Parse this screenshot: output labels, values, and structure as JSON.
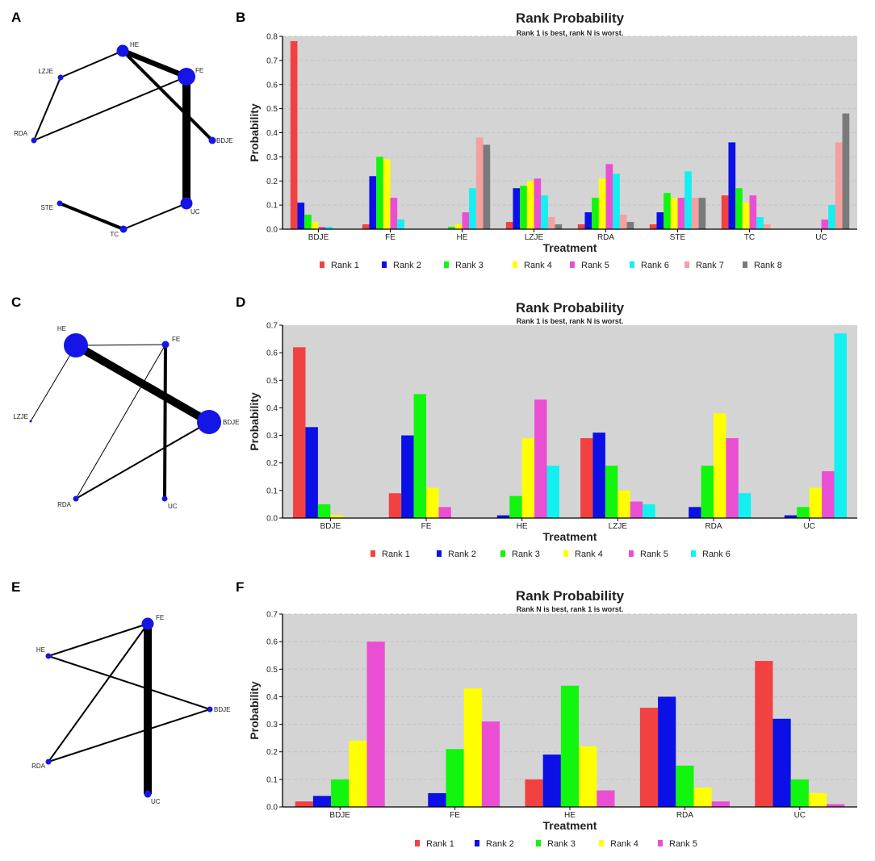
{
  "panels": [
    "A",
    "B",
    "C",
    "D",
    "E",
    "F"
  ],
  "colors": {
    "Rank 1": "#f24141",
    "Rank 2": "#0a10e6",
    "Rank 3": "#12f50e",
    "Rank 4": "#ffff00",
    "Rank 5": "#ea4fd3",
    "Rank 6": "#12f0f0",
    "Rank 7": "#f4a0a0",
    "Rank 8": "#7a7a7a",
    "node": "#1515e6",
    "plot_bg": "#d4d4d4"
  },
  "networks": [
    {
      "panel": "A",
      "nodes": [
        {
          "label": "HE",
          "size": "medium"
        },
        {
          "label": "FE",
          "size": "large"
        },
        {
          "label": "LZJE",
          "size": "tiny"
        },
        {
          "label": "RDA",
          "size": "tiny"
        },
        {
          "label": "BDJE",
          "size": "small"
        },
        {
          "label": "STE",
          "size": "tiny"
        },
        {
          "label": "TC",
          "size": "small"
        },
        {
          "label": "UC",
          "size": "medium"
        }
      ],
      "edges": [
        {
          "from": "HE",
          "to": "LZJE",
          "weight": "thin"
        },
        {
          "from": "HE",
          "to": "FE",
          "weight": "thick"
        },
        {
          "from": "HE",
          "to": "BDJE",
          "weight": "medium"
        },
        {
          "from": "LZJE",
          "to": "RDA",
          "weight": "thin"
        },
        {
          "from": "RDA",
          "to": "FE",
          "weight": "thin"
        },
        {
          "from": "FE",
          "to": "UC",
          "weight": "very-thick"
        },
        {
          "from": "UC",
          "to": "TC",
          "weight": "thin"
        },
        {
          "from": "STE",
          "to": "TC",
          "weight": "medium"
        }
      ]
    },
    {
      "panel": "C",
      "nodes": [
        {
          "label": "HE",
          "size": "xlarge"
        },
        {
          "label": "FE",
          "size": "small"
        },
        {
          "label": "LZJE",
          "size": "dot"
        },
        {
          "label": "BDJE",
          "size": "xlarge"
        },
        {
          "label": "RDA",
          "size": "tiny"
        },
        {
          "label": "UC",
          "size": "tiny"
        }
      ],
      "edges": [
        {
          "from": "HE",
          "to": "FE",
          "weight": "hair"
        },
        {
          "from": "HE",
          "to": "BDJE",
          "weight": "very-thick"
        },
        {
          "from": "HE",
          "to": "LZJE",
          "weight": "hair"
        },
        {
          "from": "FE",
          "to": "RDA",
          "weight": "hair"
        },
        {
          "from": "FE",
          "to": "UC",
          "weight": "medium"
        },
        {
          "from": "RDA",
          "to": "BDJE",
          "weight": "thin"
        }
      ]
    },
    {
      "panel": "E",
      "nodes": [
        {
          "label": "FE",
          "size": "medium"
        },
        {
          "label": "HE",
          "size": "tiny"
        },
        {
          "label": "BDJE",
          "size": "tiny"
        },
        {
          "label": "RDA",
          "size": "tiny"
        },
        {
          "label": "UC",
          "size": "small"
        }
      ],
      "edges": [
        {
          "from": "FE",
          "to": "HE",
          "weight": "thin"
        },
        {
          "from": "FE",
          "to": "RDA",
          "weight": "thin"
        },
        {
          "from": "FE",
          "to": "UC",
          "weight": "very-thick"
        },
        {
          "from": "HE",
          "to": "BDJE",
          "weight": "thin"
        },
        {
          "from": "RDA",
          "to": "BDJE",
          "weight": "thin"
        }
      ]
    }
  ],
  "chart_data": [
    {
      "panel": "B",
      "type": "bar",
      "title": "Rank Probability",
      "subtitle": "Rank 1 is best, rank N is worst.",
      "xlabel": "Treatment",
      "ylabel": "Probability",
      "ylim": [
        0,
        0.8
      ],
      "yticks": [
        0.0,
        0.1,
        0.2,
        0.3,
        0.4,
        0.5,
        0.6,
        0.7,
        0.8
      ],
      "grid": true,
      "legend": "bottom",
      "categories": [
        "BDJE",
        "FE",
        "HE",
        "LZJE",
        "RDA",
        "STE",
        "TC",
        "UC"
      ],
      "series": [
        {
          "name": "Rank 1",
          "values": [
            0.78,
            0.02,
            0.0,
            0.03,
            0.02,
            0.02,
            0.14,
            0.0
          ]
        },
        {
          "name": "Rank 2",
          "values": [
            0.11,
            0.22,
            0.0,
            0.17,
            0.07,
            0.07,
            0.36,
            0.0
          ]
        },
        {
          "name": "Rank 3",
          "values": [
            0.06,
            0.3,
            0.01,
            0.18,
            0.13,
            0.15,
            0.17,
            0.0
          ]
        },
        {
          "name": "Rank 4",
          "values": [
            0.03,
            0.29,
            0.02,
            0.2,
            0.21,
            0.13,
            0.11,
            0.0
          ]
        },
        {
          "name": "Rank 5",
          "values": [
            0.01,
            0.13,
            0.07,
            0.21,
            0.27,
            0.13,
            0.14,
            0.04
          ]
        },
        {
          "name": "Rank 6",
          "values": [
            0.01,
            0.04,
            0.17,
            0.14,
            0.23,
            0.24,
            0.05,
            0.1
          ]
        },
        {
          "name": "Rank 7",
          "values": [
            0.0,
            0.0,
            0.38,
            0.05,
            0.06,
            0.13,
            0.02,
            0.36
          ]
        },
        {
          "name": "Rank 8",
          "values": [
            0.0,
            0.0,
            0.35,
            0.02,
            0.03,
            0.13,
            0.0,
            0.48
          ]
        }
      ]
    },
    {
      "panel": "D",
      "type": "bar",
      "title": "Rank Probability",
      "subtitle": "Rank 1 is best, rank N is worst.",
      "xlabel": "Treatment",
      "ylabel": "Probability",
      "ylim": [
        0,
        0.7
      ],
      "yticks": [
        0.0,
        0.1,
        0.2,
        0.3,
        0.4,
        0.5,
        0.6,
        0.7
      ],
      "grid": false,
      "legend": "bottom",
      "categories": [
        "BDJE",
        "FE",
        "HE",
        "LZJE",
        "RDA",
        "UC"
      ],
      "series": [
        {
          "name": "Rank 1",
          "values": [
            0.62,
            0.09,
            0.0,
            0.29,
            0.0,
            0.0
          ]
        },
        {
          "name": "Rank 2",
          "values": [
            0.33,
            0.3,
            0.01,
            0.31,
            0.04,
            0.01
          ]
        },
        {
          "name": "Rank 3",
          "values": [
            0.05,
            0.45,
            0.08,
            0.19,
            0.19,
            0.04
          ]
        },
        {
          "name": "Rank 4",
          "values": [
            0.01,
            0.11,
            0.29,
            0.1,
            0.38,
            0.11
          ]
        },
        {
          "name": "Rank 5",
          "values": [
            0.0,
            0.04,
            0.43,
            0.06,
            0.29,
            0.17
          ]
        },
        {
          "name": "Rank 6",
          "values": [
            0.0,
            0.0,
            0.19,
            0.05,
            0.09,
            0.67
          ]
        }
      ]
    },
    {
      "panel": "F",
      "type": "bar",
      "title": "Rank Probability",
      "subtitle": "Rank N is best, rank 1 is worst.",
      "xlabel": "Treatment",
      "ylabel": "Probability",
      "ylim": [
        0,
        0.7
      ],
      "yticks": [
        0.0,
        0.1,
        0.2,
        0.3,
        0.4,
        0.5,
        0.6,
        0.7
      ],
      "grid": true,
      "legend": "bottom",
      "categories": [
        "BDJE",
        "FE",
        "HE",
        "RDA",
        "UC"
      ],
      "series": [
        {
          "name": "Rank 1",
          "values": [
            0.02,
            0.0,
            0.1,
            0.36,
            0.53
          ]
        },
        {
          "name": "Rank 2",
          "values": [
            0.04,
            0.05,
            0.19,
            0.4,
            0.32
          ]
        },
        {
          "name": "Rank 3",
          "values": [
            0.1,
            0.21,
            0.44,
            0.15,
            0.1
          ]
        },
        {
          "name": "Rank 4",
          "values": [
            0.24,
            0.43,
            0.22,
            0.07,
            0.05
          ]
        },
        {
          "name": "Rank 5",
          "values": [
            0.6,
            0.31,
            0.06,
            0.02,
            0.01
          ]
        }
      ]
    }
  ]
}
